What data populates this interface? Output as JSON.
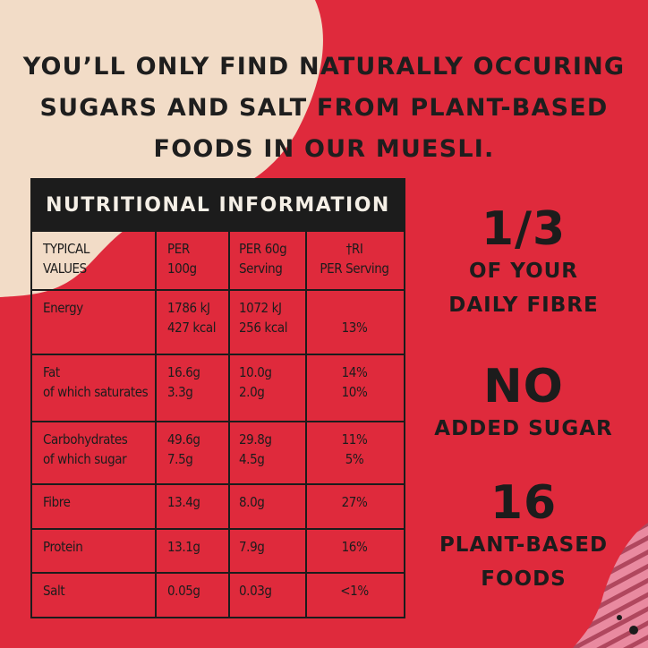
{
  "colors": {
    "background": "#df2a3c",
    "cream_shape": "#f2dcc7",
    "pink_shape": "#e98aa0",
    "text_dark": "#1c1c1c"
  },
  "headline": {
    "line1": "YOU’LL ONLY FIND NATURALLY OCCURING",
    "line2": "SUGARS AND SALT FROM PLANT-BASED",
    "line3": "FOODS IN OUR MUESLI."
  },
  "table": {
    "title": "NUTRITIONAL INFORMATION",
    "headers": {
      "col1_line1": "TYPICAL",
      "col1_line2": "VALUES",
      "col2_line1": "PER",
      "col2_line2": "100g",
      "col3_line1": "PER 60g",
      "col3_line2": "Serving",
      "col4_line1": "†RI",
      "col4_line2": "PER Serving"
    },
    "rows": {
      "energy": {
        "label": "Energy",
        "per100_a": "1786 kJ",
        "per100_b": "427 kcal",
        "serving_a": "1072 kJ",
        "serving_b": "256 kcal",
        "ri": "13%"
      },
      "fat": {
        "label_a": "Fat",
        "label_b": "of which saturates",
        "per100_a": "16.6g",
        "per100_b": "3.3g",
        "serving_a": "10.0g",
        "serving_b": "2.0g",
        "ri_a": "14%",
        "ri_b": "10%"
      },
      "carbs": {
        "label_a": "Carbohydrates",
        "label_b": "of which sugar",
        "per100_a": "49.6g",
        "per100_b": "7.5g",
        "serving_a": "29.8g",
        "serving_b": "4.5g",
        "ri_a": "11%",
        "ri_b": "5%"
      },
      "fibre": {
        "label": "Fibre",
        "per100": "13.4g",
        "serving": "8.0g",
        "ri": "27%"
      },
      "protein": {
        "label": "Protein",
        "per100": "13.1g",
        "serving": "7.9g",
        "ri": "16%"
      },
      "salt": {
        "label": "Salt",
        "per100": "0.05g",
        "serving": "0.03g",
        "ri": "<1%"
      }
    }
  },
  "claims": {
    "fibre_big": "1/3",
    "fibre_line1": "OF YOUR",
    "fibre_line2": "DAILY FIBRE",
    "sugar_big": "NO",
    "sugar_line1": "ADDED SUGAR",
    "foods_big": "16",
    "foods_line1": "PLANT-BASED",
    "foods_line2": "FOODS"
  }
}
